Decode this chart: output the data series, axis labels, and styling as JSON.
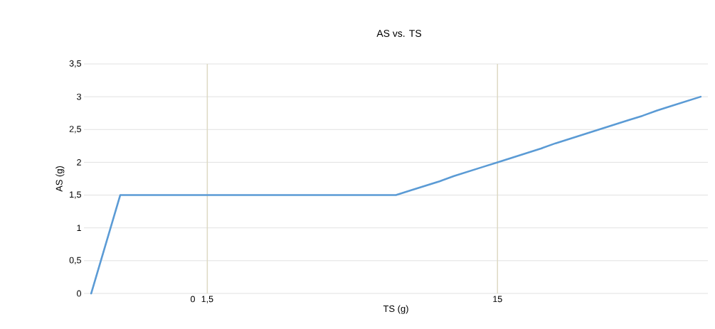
{
  "chart_data": {
    "type": "line",
    "title": "AS vs. TS",
    "xlabel": "TS (g)",
    "ylabel": "AS (g)",
    "categories": [
      null,
      null,
      null,
      null,
      null,
      null,
      null,
      "0",
      "1,5",
      null,
      null,
      null,
      null,
      null,
      null,
      null,
      null,
      null,
      null,
      null,
      null,
      null,
      null,
      null,
      null,
      null,
      null,
      null,
      "15",
      null,
      null,
      null,
      null,
      null,
      null,
      null,
      null,
      null,
      null,
      null,
      null,
      null,
      null
    ],
    "series": [
      {
        "color": "#5b9bd5",
        "values": [
          0,
          0.75,
          1.5,
          1.5,
          1.5,
          1.5,
          1.5,
          1.5,
          1.5,
          1.5,
          1.5,
          1.5,
          1.5,
          1.5,
          1.5,
          1.5,
          1.5,
          1.5,
          1.5,
          1.5,
          1.5,
          1.5,
          1.57,
          1.64,
          1.71,
          1.79,
          1.86,
          1.93,
          2.0,
          2.07,
          2.14,
          2.21,
          2.29,
          2.36,
          2.43,
          2.5,
          2.57,
          2.64,
          2.71,
          2.79,
          2.86,
          2.93,
          3.0
        ]
      }
    ],
    "ylim": [
      0,
      3.5
    ],
    "yticks": [
      0,
      {
        "value": 0.5,
        "label": "0,5"
      },
      1,
      {
        "value": 1.5,
        "label": "1,5"
      },
      2,
      {
        "value": 2.5,
        "label": "2,5"
      },
      3,
      {
        "value": 3.5,
        "label": "3,5"
      }
    ],
    "grid": "y",
    "legend": false,
    "marker": "none",
    "line_style": "solid",
    "ref_lines": [
      {
        "axis": "x",
        "value": "1,5",
        "color": "#ddd9c3"
      },
      {
        "axis": "x",
        "value": "15",
        "color": "#ddd9c3"
      }
    ]
  }
}
